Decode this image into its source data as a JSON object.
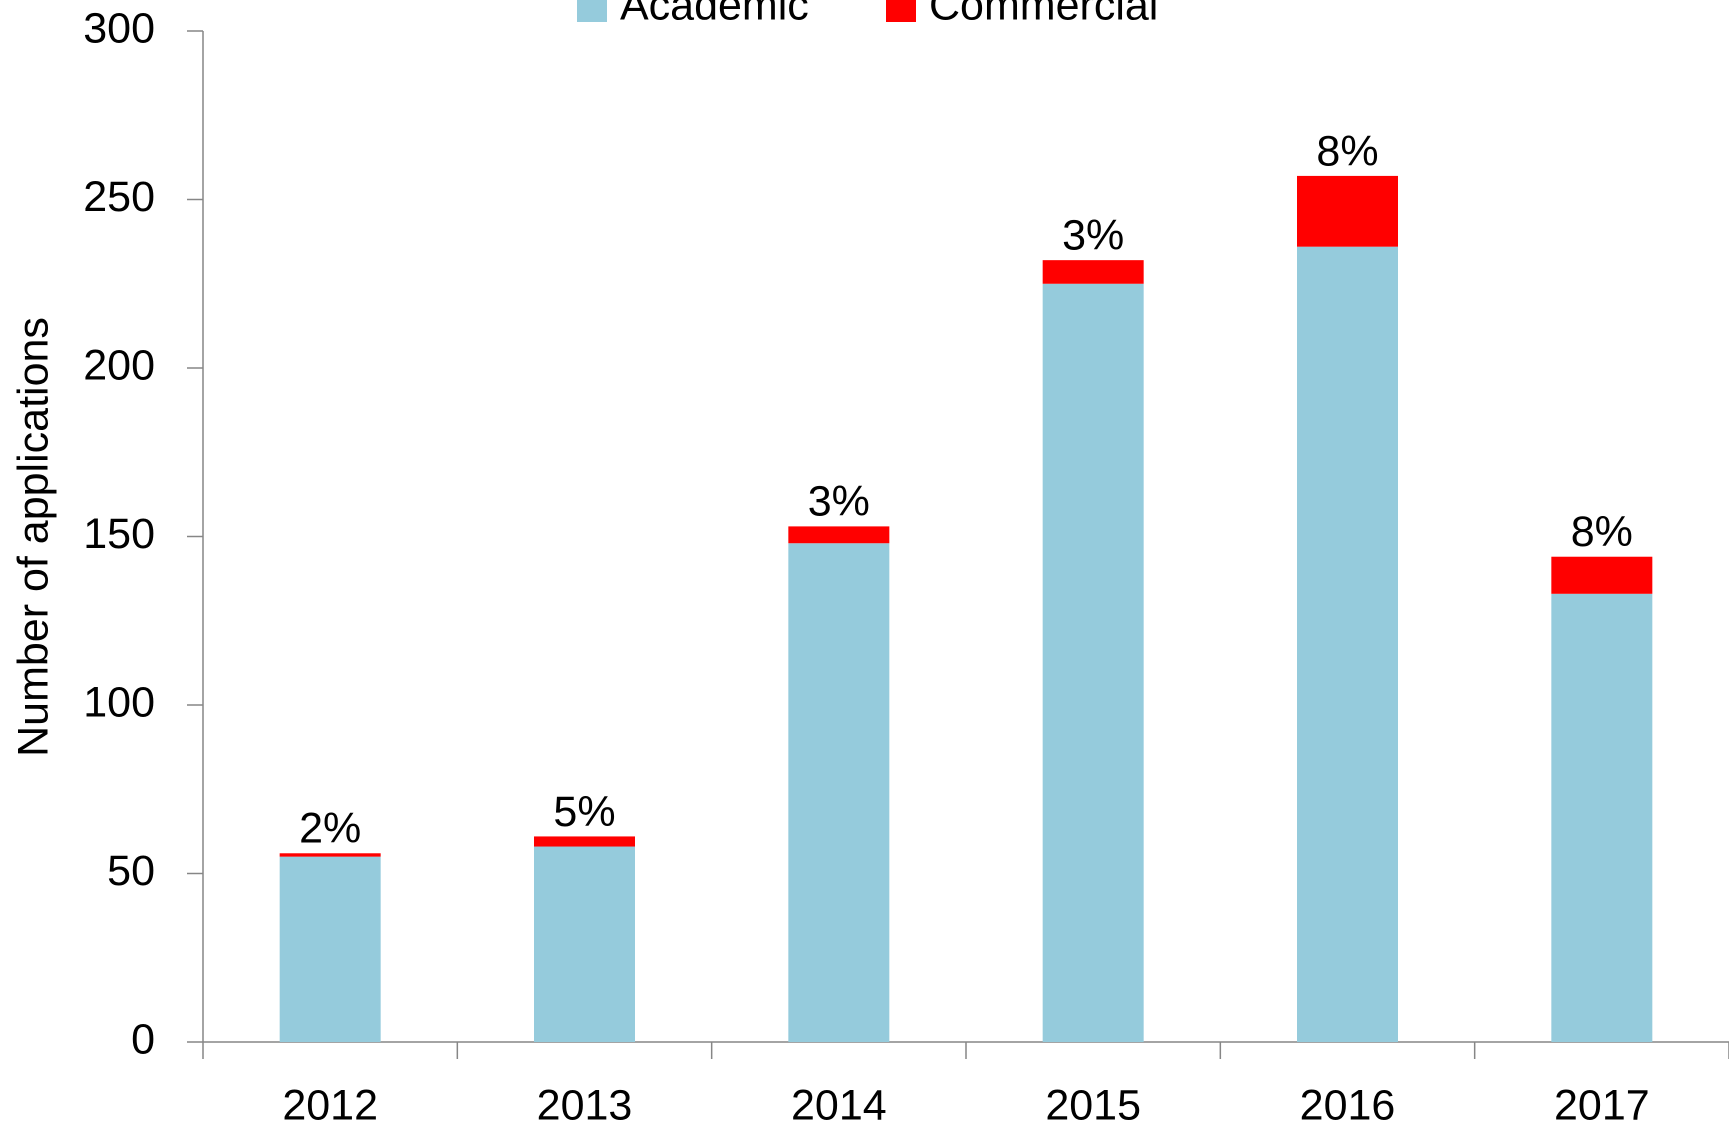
{
  "chart_data": {
    "type": "stacked_bar",
    "y_axis_label": "Number of applications",
    "categories": [
      "2012",
      "2013",
      "2014",
      "2015",
      "2016",
      "2017"
    ],
    "series": [
      {
        "name": "Academic",
        "color": "#95cbdc",
        "values": [
          55,
          58,
          148,
          225,
          236,
          133
        ]
      },
      {
        "name": "Commercial",
        "color": "#ff0000",
        "values": [
          1,
          3,
          5,
          7,
          21,
          11
        ]
      }
    ],
    "annotations": [
      "2%",
      "5%",
      "3%",
      "3%",
      "8%",
      "8%"
    ],
    "ylim": [
      0,
      300
    ],
    "yticks": [
      0,
      50,
      100,
      150,
      200,
      250,
      300
    ],
    "legend": "top"
  }
}
